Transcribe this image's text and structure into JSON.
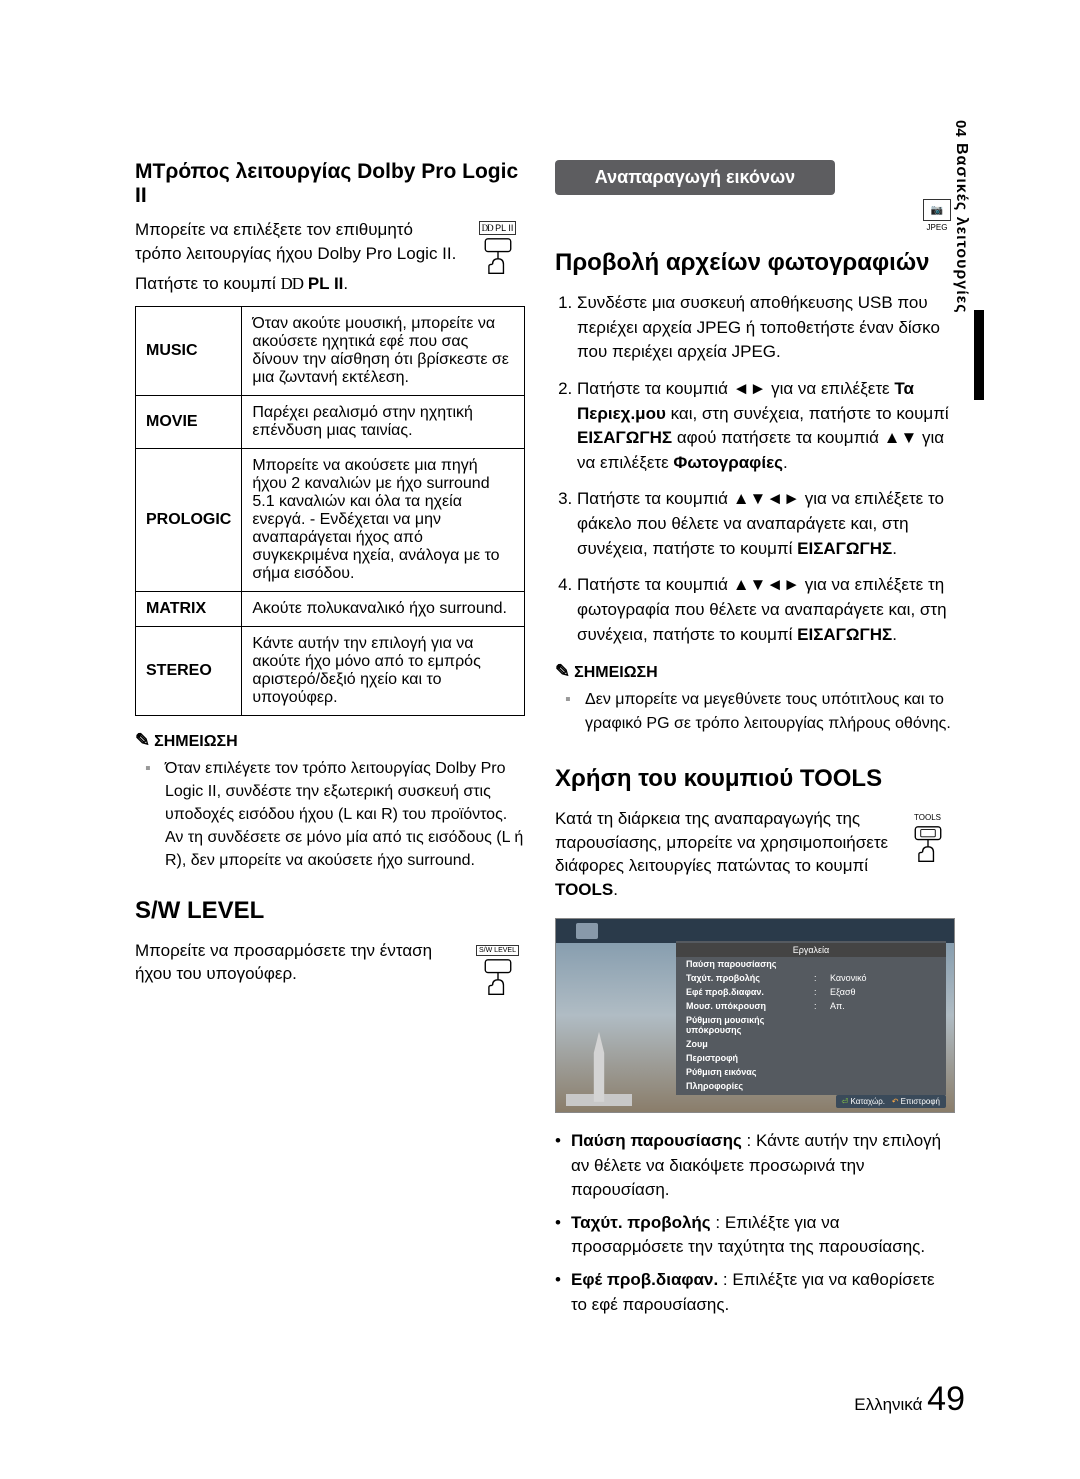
{
  "sidebar": {
    "num": "04",
    "label": "Βασικές λειτουργίες"
  },
  "left": {
    "dolby": {
      "title": "MΤρόπος λειτουργίας Dolby Pro Logic II",
      "intro": "Μπορείτε να επιλέξετε τον επιθυμητό τρόπο λειτουργίας ήχου Dolby Pro Logic II.",
      "btn_label": "PL II",
      "press_prefix": "Πατήστε το κουμπί ",
      "press_btn": "PL II",
      "press_suffix": ".",
      "table": [
        {
          "mode": "MUSIC",
          "desc": "Όταν ακούτε μουσική, μπορείτε να ακούσετε ηχητικά εφέ που σας δίνουν την αίσθηση ότι βρίσκεστε σε μια ζωντανή εκτέλεση."
        },
        {
          "mode": "MOVIE",
          "desc": "Παρέχει ρεαλισμό στην ηχητική επένδυση μιας ταινίας."
        },
        {
          "mode": "PROLOGIC",
          "desc": "Μπορείτε να ακούσετε μια πηγή ήχου 2 καναλιών με ήχο surround 5.1 καναλιών και όλα τα ηχεία ενεργά. - Ενδέχεται να μην αναπαράγεται ήχος από συγκεκριμένα ηχεία, ανάλογα με το σήμα εισόδου."
        },
        {
          "mode": "MATRIX",
          "desc": "Ακούτε πολυκαναλικό ήχο surround."
        },
        {
          "mode": "STEREO",
          "desc": "Κάντε αυτήν την επιλογή για να ακούτε ήχο μόνο από το εμπρός αριστερό/δεξιό ηχείο και το υπογούφερ."
        }
      ],
      "note_head": "ΣΗΜΕΙΩΣΗ",
      "note": "Όταν επιλέγετε τον τρόπο λειτουργίας Dolby Pro Logic II, συνδέστε την εξωτερική συσκευή στις υποδοχές εισόδου ήχου (L και R) του προϊόντος. Αν τη συνδέσετε σε μόνο μία από τις εισόδους (L ή R), δεν μπορείτε να ακούσετε ήχο surround."
    },
    "sw": {
      "title": "S/W LEVEL",
      "btn_label": "S/W LEVEL",
      "text": "Μπορείτε να προσαρμόσετε την ένταση ήχου του υπογούφερ."
    }
  },
  "right": {
    "banner": "Αναπαραγωγή εικόνων",
    "badge": {
      "icon": "📷",
      "label": "JPEG"
    },
    "photos": {
      "title": "Προβολή αρχείων φωτογραφιών",
      "steps": [
        "Συνδέστε μια συσκευή αποθήκευσης USB που περιέχει αρχεία JPEG ή τοποθετήστε έναν δίσκο που περιέχει αρχεία JPEG.",
        "Πατήστε τα κουμπιά ◄► για να επιλέξετε <b>Τα Περιεχ.μου</b> και, στη συνέχεια, πατήστε το κουμπί <b>ΕΙΣΑΓΩΓΗΣ</b> αφού πατήσετε τα κουμπιά ▲▼ για να επιλέξετε <b>Φωτογραφίες</b>.",
        "Πατήστε τα κουμπιά ▲▼◄► για να επιλέξετε το φάκελο που θέλετε να αναπαράγετε και, στη συνέχεια, πατήστε το κουμπί <b>ΕΙΣΑΓΩΓΗΣ</b>.",
        "Πατήστε τα κουμπιά ▲▼◄► για να επιλέξετε τη φωτογραφία που θέλετε να αναπαράγετε και, στη συνέχεια, πατήστε το κουμπί <b>ΕΙΣΑΓΩΓΗΣ</b>."
      ],
      "note_head": "ΣΗΜΕΙΩΣΗ",
      "note": "Δεν μπορείτε να μεγεθύνετε τους υπότιτλους και το γραφικό PG σε τρόπο λειτουργίας πλήρους οθόνης."
    },
    "tools": {
      "title": "Χρήση του κουμπιού TOOLS",
      "btn_label": "TOOLS",
      "intro_pre": "Κατά τη διάρκεια της αναπαραγωγής της παρουσίασης, μπορείτε να χρησιμοποιήσετε διάφορες λειτουργίες πατώντας το κουμπί ",
      "intro_btn": "TOOLS",
      "intro_post": ".",
      "menu": {
        "title": "Εργαλεία",
        "rows": [
          {
            "k": "Παύση παρουσίασης",
            "s": "",
            "v": ""
          },
          {
            "k": "Ταχύτ. προβολής",
            "s": ":",
            "v": "Κανονικό"
          },
          {
            "k": "Εφέ προβ.διαφαν.",
            "s": ":",
            "v": "Εξασθ"
          },
          {
            "k": "Μουσ. υπόκρουση",
            "s": ":",
            "v": "Απ."
          },
          {
            "k": "Ρύθμιση μουσικής υπόκρουσης",
            "s": "",
            "v": ""
          },
          {
            "k": "Ζουμ",
            "s": "",
            "v": ""
          },
          {
            "k": "Περιστροφή",
            "s": "",
            "v": ""
          },
          {
            "k": "Ρύθμιση εικόνας",
            "s": "",
            "v": ""
          },
          {
            "k": "Πληροφορίες",
            "s": "",
            "v": ""
          }
        ],
        "foot_ok": "Καταχώρ.",
        "foot_back": "Επιστροφή"
      },
      "bullets": [
        "<b>Παύση παρουσίασης</b> : Κάντε αυτήν την επιλογή αν θέλετε να διακόψετε προσωρινά την παρουσίαση.",
        "<b>Ταχύτ. προβολής</b> : Επιλέξτε για να προσαρμόσετε την ταχύτητα της παρουσίασης.",
        "<b>Εφέ προβ.διαφαν.</b> : Επιλέξτε για να καθορίσετε το εφέ παρουσίασης."
      ]
    }
  },
  "page": {
    "lang": "Ελληνικά",
    "num": "49"
  }
}
